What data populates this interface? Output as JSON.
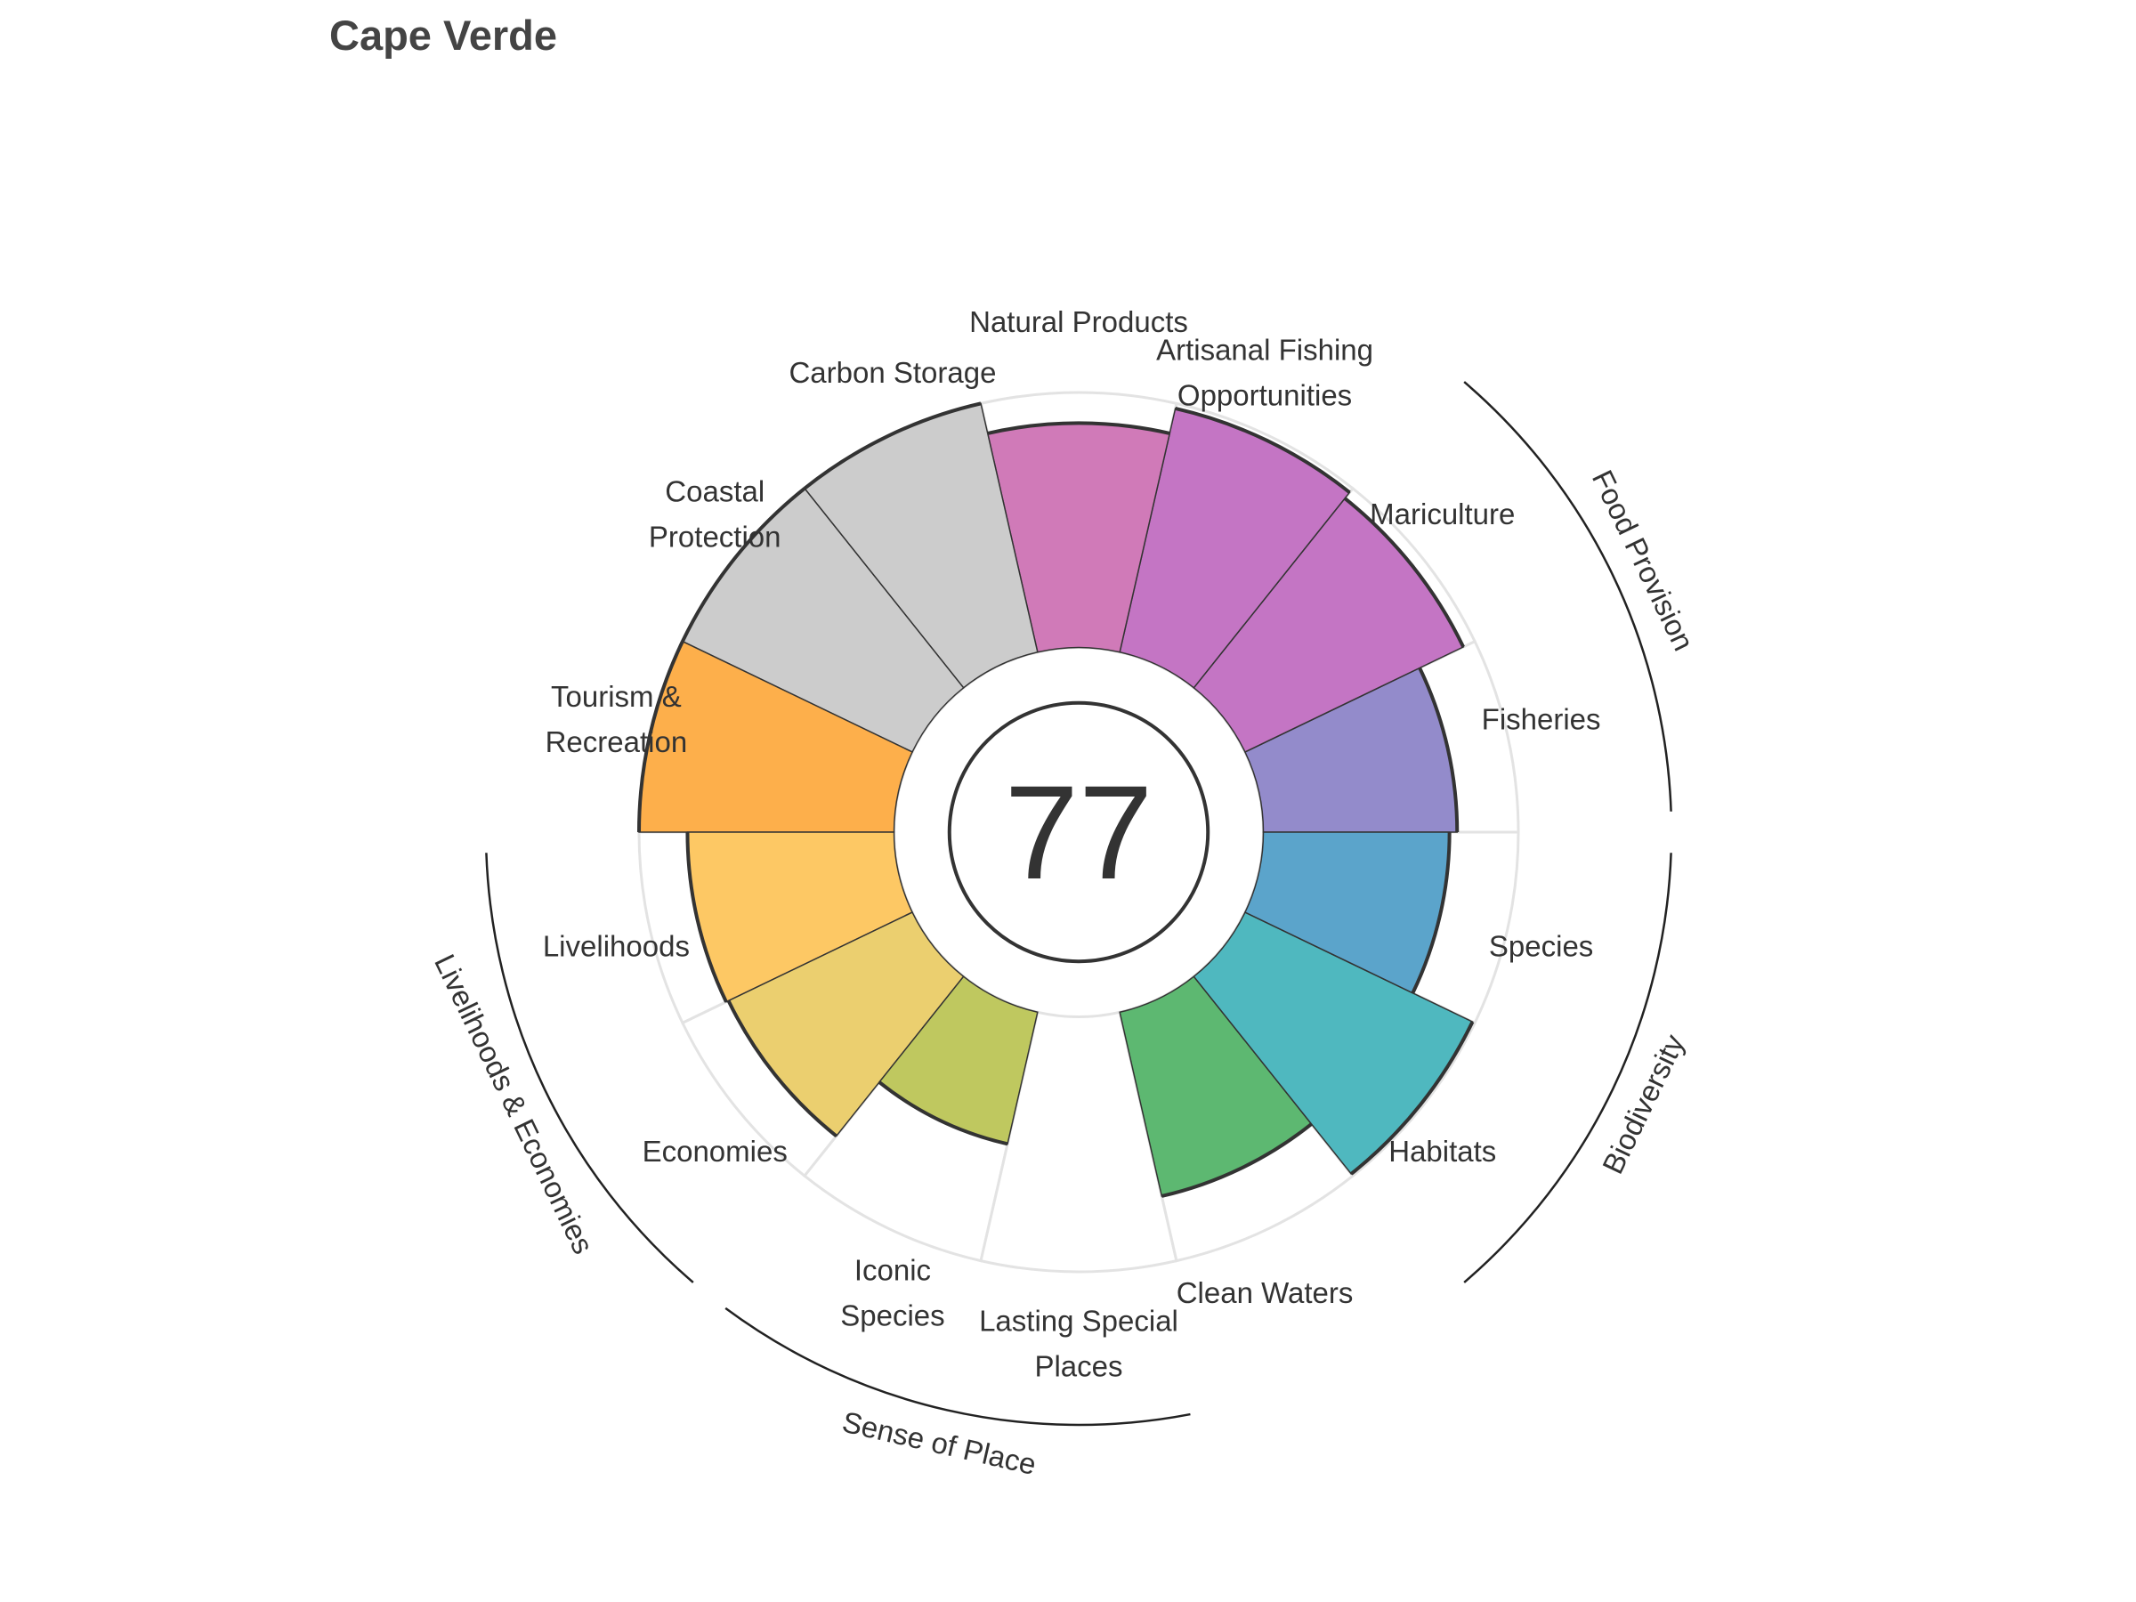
{
  "title": "Cape Verde",
  "chart_data": {
    "type": "polar-bar",
    "title": "Cape Verde",
    "center_score": "77",
    "rmax": 100,
    "inner_radius_fraction": 0.42,
    "categories": [
      {
        "name": "Fisheries",
        "label_lines": [
          "Fisheries"
        ],
        "value": 76,
        "color": "#938BCB",
        "group": "Food Provision"
      },
      {
        "name": "Mariculture",
        "label_lines": [
          "Mariculture"
        ],
        "value": 95,
        "color": "#C475C4",
        "group": "Food Provision"
      },
      {
        "name": "Artisanal Fishing Opportunities",
        "label_lines": [
          "Artisanal Fishing",
          "Opportunities"
        ],
        "value": 98,
        "color": "#C475C4",
        "group": ""
      },
      {
        "name": "Natural Products",
        "label_lines": [
          "Natural Products"
        ],
        "value": 88,
        "color": "#D07AB8",
        "group": ""
      },
      {
        "name": "Carbon Storage",
        "label_lines": [
          "Carbon Storage"
        ],
        "value": 100,
        "color": "#CCCCCC",
        "group": ""
      },
      {
        "name": "Coastal Protection",
        "label_lines": [
          "Coastal",
          "Protection"
        ],
        "value": 100,
        "color": "#CCCCCC",
        "group": ""
      },
      {
        "name": "Tourism & Recreation",
        "label_lines": [
          "Tourism &",
          "Recreation"
        ],
        "value": 100,
        "color": "#FDAF4B",
        "group": ""
      },
      {
        "name": "Livelihoods",
        "label_lines": [
          "Livelihoods"
        ],
        "value": 81,
        "color": "#FDC864",
        "group": "Livelihoods & Economies"
      },
      {
        "name": "Economies",
        "label_lines": [
          "Economies"
        ],
        "value": 80,
        "color": "#EBCF6F",
        "group": "Livelihoods & Economies"
      },
      {
        "name": "Iconic Species",
        "label_lines": [
          "Iconic",
          "Species"
        ],
        "value": 53,
        "color": "#BFC85F",
        "group": "Sense of Place"
      },
      {
        "name": "Lasting Special Places",
        "label_lines": [
          "Lasting Special",
          "Places"
        ],
        "value": 0,
        "color": "#9FCF74",
        "group": "Sense of Place"
      },
      {
        "name": "Clean Waters",
        "label_lines": [
          "Clean Waters"
        ],
        "value": 74,
        "color": "#5DB871",
        "group": ""
      },
      {
        "name": "Habitats",
        "label_lines": [
          "Habitats"
        ],
        "value": 99,
        "color": "#4FB8BF",
        "group": "Biodiversity"
      },
      {
        "name": "Species",
        "label_lines": [
          "Species"
        ],
        "value": 73,
        "color": "#5BA4CB",
        "group": "Biodiversity"
      }
    ],
    "groups": [
      {
        "name": "Food Provision"
      },
      {
        "name": "Biodiversity"
      },
      {
        "name": "Sense of Place"
      },
      {
        "name": "Livelihoods & Economies"
      }
    ],
    "grid": false,
    "legend": "none"
  }
}
